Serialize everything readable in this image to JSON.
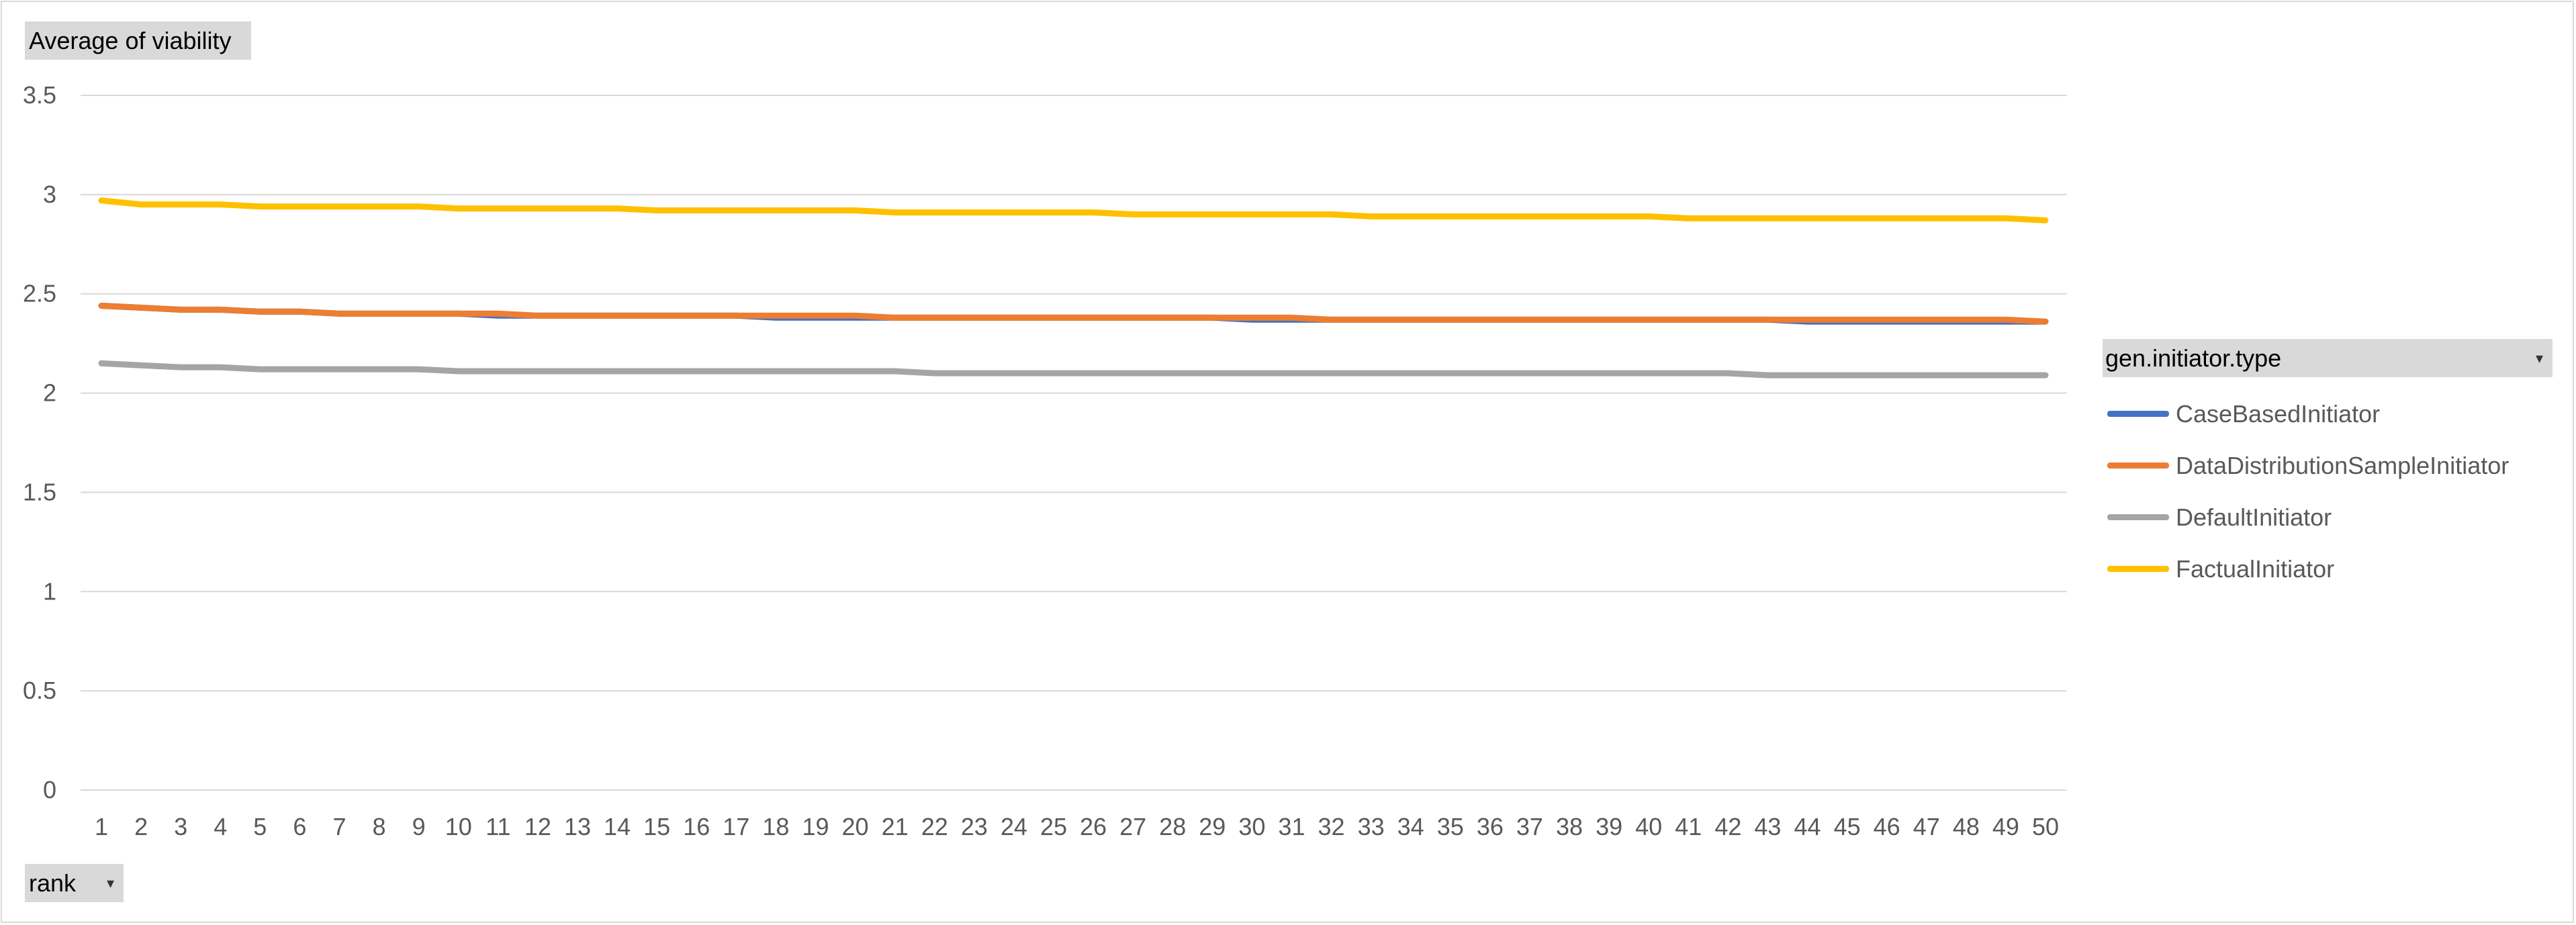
{
  "value_field": {
    "label": "Average  of viability"
  },
  "axis_field": {
    "label": "rank"
  },
  "legend_field": {
    "label": "gen.initiator.type"
  },
  "chart_data": {
    "type": "line",
    "ylim": [
      0,
      3.5
    ],
    "yticks": [
      "0",
      "0.5",
      "1",
      "1.5",
      "2",
      "2.5",
      "3",
      "3.5"
    ],
    "x": [
      "1",
      "2",
      "3",
      "4",
      "5",
      "6",
      "7",
      "8",
      "9",
      "10",
      "11",
      "12",
      "13",
      "14",
      "15",
      "16",
      "17",
      "18",
      "19",
      "20",
      "21",
      "22",
      "23",
      "24",
      "25",
      "26",
      "27",
      "28",
      "29",
      "30",
      "31",
      "32",
      "33",
      "34",
      "35",
      "36",
      "37",
      "38",
      "39",
      "40",
      "41",
      "42",
      "43",
      "44",
      "45",
      "46",
      "47",
      "48",
      "49",
      "50"
    ],
    "grid": true,
    "legend_position": "right",
    "series": [
      {
        "name": "CaseBasedInitiator",
        "color": "#4472c4",
        "values": [
          2.44,
          2.43,
          2.42,
          2.42,
          2.41,
          2.41,
          2.4,
          2.4,
          2.4,
          2.4,
          2.39,
          2.39,
          2.39,
          2.39,
          2.39,
          2.39,
          2.39,
          2.38,
          2.38,
          2.38,
          2.38,
          2.38,
          2.38,
          2.38,
          2.38,
          2.38,
          2.38,
          2.38,
          2.38,
          2.37,
          2.37,
          2.37,
          2.37,
          2.37,
          2.37,
          2.37,
          2.37,
          2.37,
          2.37,
          2.37,
          2.37,
          2.37,
          2.37,
          2.36,
          2.36,
          2.36,
          2.36,
          2.36,
          2.36,
          2.36
        ]
      },
      {
        "name": "DataDistributionSampleInitiator",
        "color": "#ed7d31",
        "values": [
          2.44,
          2.43,
          2.42,
          2.42,
          2.41,
          2.41,
          2.4,
          2.4,
          2.4,
          2.4,
          2.4,
          2.39,
          2.39,
          2.39,
          2.39,
          2.39,
          2.39,
          2.39,
          2.39,
          2.39,
          2.38,
          2.38,
          2.38,
          2.38,
          2.38,
          2.38,
          2.38,
          2.38,
          2.38,
          2.38,
          2.38,
          2.37,
          2.37,
          2.37,
          2.37,
          2.37,
          2.37,
          2.37,
          2.37,
          2.37,
          2.37,
          2.37,
          2.37,
          2.37,
          2.37,
          2.37,
          2.37,
          2.37,
          2.37,
          2.36
        ]
      },
      {
        "name": "DefaultInitiator",
        "color": "#a5a5a5",
        "values": [
          2.15,
          2.14,
          2.13,
          2.13,
          2.12,
          2.12,
          2.12,
          2.12,
          2.12,
          2.11,
          2.11,
          2.11,
          2.11,
          2.11,
          2.11,
          2.11,
          2.11,
          2.11,
          2.11,
          2.11,
          2.11,
          2.1,
          2.1,
          2.1,
          2.1,
          2.1,
          2.1,
          2.1,
          2.1,
          2.1,
          2.1,
          2.1,
          2.1,
          2.1,
          2.1,
          2.1,
          2.1,
          2.1,
          2.1,
          2.1,
          2.1,
          2.1,
          2.09,
          2.09,
          2.09,
          2.09,
          2.09,
          2.09,
          2.09,
          2.09
        ]
      },
      {
        "name": "FactualInitiator",
        "color": "#ffc000",
        "values": [
          2.97,
          2.95,
          2.95,
          2.95,
          2.94,
          2.94,
          2.94,
          2.94,
          2.94,
          2.93,
          2.93,
          2.93,
          2.93,
          2.93,
          2.92,
          2.92,
          2.92,
          2.92,
          2.92,
          2.92,
          2.91,
          2.91,
          2.91,
          2.91,
          2.91,
          2.91,
          2.9,
          2.9,
          2.9,
          2.9,
          2.9,
          2.9,
          2.89,
          2.89,
          2.89,
          2.89,
          2.89,
          2.89,
          2.89,
          2.89,
          2.88,
          2.88,
          2.88,
          2.88,
          2.88,
          2.88,
          2.88,
          2.88,
          2.88,
          2.87
        ]
      }
    ]
  }
}
